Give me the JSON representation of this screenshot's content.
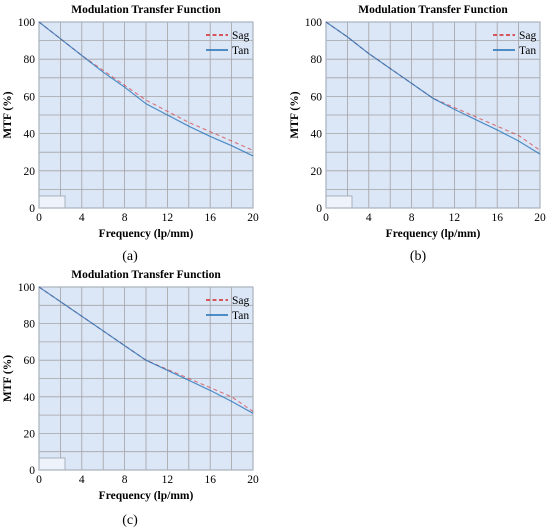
{
  "figure": {
    "captions": [
      "(a)",
      "(b)",
      "(c)"
    ]
  },
  "colors": {
    "plot_bg": "#dbe6f7",
    "grid": "#a3a3a3",
    "frame": "#a9b2bd",
    "sag": "#d62728",
    "tan": "#1f6fb5",
    "overlap_line": "#9b9fb6"
  },
  "chart_data": [
    {
      "type": "line",
      "title": "Modulation Transfer Function",
      "xlabel": "Frequency (lp/mm)",
      "ylabel": "MTF (%)",
      "xlim": [
        0,
        20
      ],
      "ylim": [
        0,
        100
      ],
      "xticks": [
        0,
        4,
        8,
        12,
        16,
        20
      ],
      "yticks": [
        0,
        20,
        40,
        60,
        80,
        100
      ],
      "grid": true,
      "legend_position": "top-right",
      "series": [
        {
          "name": "Sag",
          "style": "dashed",
          "x": [
            0,
            2,
            4,
            6,
            8,
            10,
            12,
            14,
            16,
            18,
            20
          ],
          "y": [
            100,
            91,
            82,
            74,
            66,
            58,
            52,
            46,
            41,
            36,
            31
          ]
        },
        {
          "name": "Tan",
          "style": "solid",
          "x": [
            0,
            2,
            4,
            6,
            8,
            10,
            12,
            14,
            16,
            18,
            20
          ],
          "y": [
            100,
            91,
            82,
            73,
            65,
            56,
            50,
            44,
            38.5,
            33.5,
            28
          ]
        }
      ]
    },
    {
      "type": "line",
      "title": "Modulation Transfer Function",
      "xlabel": "Frequency (lp/mm)",
      "ylabel": "MTF (%)",
      "xlim": [
        0,
        20
      ],
      "ylim": [
        0,
        100
      ],
      "xticks": [
        0,
        4,
        8,
        12,
        16,
        20
      ],
      "yticks": [
        0,
        20,
        40,
        60,
        80,
        100
      ],
      "grid": true,
      "legend_position": "top-right",
      "series": [
        {
          "name": "Sag",
          "style": "dashed",
          "x": [
            0,
            2,
            4,
            6,
            8,
            10,
            12,
            14,
            16,
            18,
            20
          ],
          "y": [
            100,
            92,
            83,
            75,
            67,
            59,
            54,
            49,
            44,
            39,
            31
          ]
        },
        {
          "name": "Tan",
          "style": "solid",
          "x": [
            0,
            2,
            4,
            6,
            8,
            10,
            12,
            14,
            16,
            18,
            20
          ],
          "y": [
            100,
            92,
            83,
            75,
            67,
            59,
            53,
            47.5,
            42,
            36,
            29
          ]
        }
      ]
    },
    {
      "type": "line",
      "title": "Modulation Transfer Function",
      "xlabel": "Frequency (lp/mm)",
      "ylabel": "MTF (%)",
      "xlim": [
        0,
        20
      ],
      "ylim": [
        0,
        100
      ],
      "xticks": [
        0,
        4,
        8,
        12,
        16,
        20
      ],
      "yticks": [
        0,
        20,
        40,
        60,
        80,
        100
      ],
      "grid": true,
      "legend_position": "top-right",
      "series": [
        {
          "name": "Sag",
          "style": "dashed",
          "x": [
            0,
            2,
            4,
            6,
            8,
            10,
            12,
            14,
            16,
            18,
            20
          ],
          "y": [
            100,
            92,
            84,
            76,
            68,
            60,
            55,
            50,
            45,
            40,
            32
          ]
        },
        {
          "name": "Tan",
          "style": "solid",
          "x": [
            0,
            2,
            4,
            6,
            8,
            10,
            12,
            14,
            16,
            18,
            20
          ],
          "y": [
            100,
            92,
            84,
            76,
            68,
            60,
            54.5,
            49,
            43.5,
            37.5,
            31
          ]
        }
      ]
    }
  ]
}
